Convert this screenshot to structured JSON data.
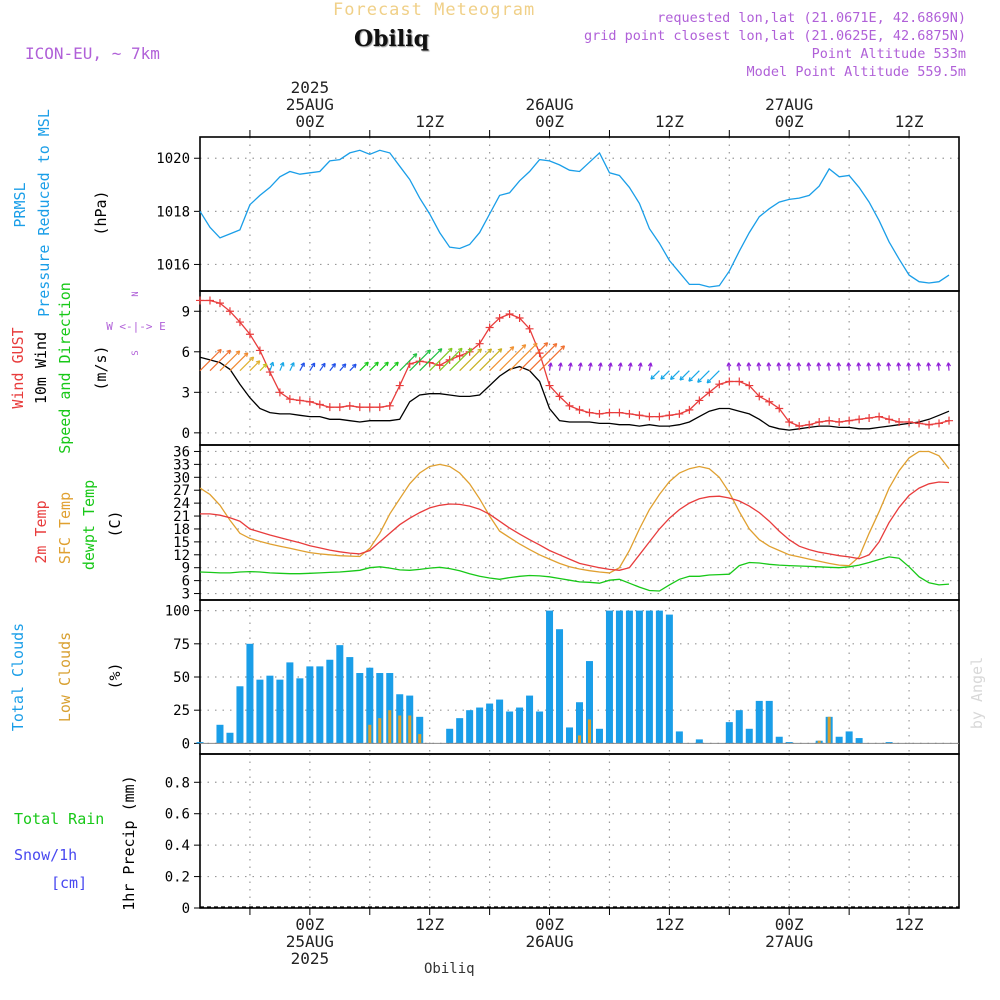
{
  "header": {
    "title_faded": "Forecast Meteogram",
    "location": "Obiliq",
    "model": "ICON-EU, ~ 7km",
    "requested": "requested lon,lat (21.0671E, 42.6869N)",
    "gridpoint": "grid point closest lon,lat (21.0625E, 42.6875N)",
    "point_alt": "Point Altitude 533m",
    "model_alt": "Model Point Altitude 559.5m",
    "watermark": "by Angel",
    "bottom_location": "Obiliq"
  },
  "time_axis": {
    "top_labels": [
      {
        "h": 0,
        "lines": [
          "2025",
          "25AUG",
          "00Z"
        ]
      },
      {
        "h": 12,
        "lines": [
          "12Z"
        ]
      },
      {
        "h": 24,
        "lines": [
          "26AUG",
          "00Z"
        ]
      },
      {
        "h": 36,
        "lines": [
          "12Z"
        ]
      },
      {
        "h": 48,
        "lines": [
          "27AUG",
          "00Z"
        ]
      },
      {
        "h": 60,
        "lines": [
          "12Z"
        ]
      }
    ],
    "bottom_labels": [
      {
        "h": 0,
        "lines": [
          "00Z",
          "25AUG",
          "2025"
        ]
      },
      {
        "h": 12,
        "lines": [
          "12Z"
        ]
      },
      {
        "h": 24,
        "lines": [
          "00Z",
          "26AUG"
        ]
      },
      {
        "h": 36,
        "lines": [
          "12Z"
        ]
      },
      {
        "h": 48,
        "lines": [
          "00Z",
          "27AUG"
        ]
      },
      {
        "h": 60,
        "lines": [
          "12Z"
        ]
      }
    ],
    "x_range_hours": [
      -11,
      65
    ]
  },
  "panel_labels": {
    "pressure": {
      "left": "PRMSL",
      "mid": "Pressure Reduced to MSL",
      "unit": "(hPa)"
    },
    "wind": {
      "gust": "Wind GUST",
      "wind10": "10m Wind",
      "dir": "Speed and Direction",
      "unit": "(m/s)",
      "compass_n": "N",
      "compass_s": "S",
      "compass_we": "W <-|-> E"
    },
    "temp": {
      "t2m": "2m Temp",
      "sfc": "SFC Temp",
      "dew": "dewpt Temp",
      "unit": "(C)"
    },
    "cloud": {
      "total": "Total Clouds",
      "low": "Low Clouds",
      "unit": "(%)"
    },
    "precip": {
      "rain": "Total  Rain",
      "snow": "Snow/1h",
      "snow_unit": "[cm]",
      "unit": "1hr Precip (mm)"
    }
  },
  "colors": {
    "pressure": "#1a9ee8",
    "gust": "#e83c3c",
    "wind10": "#000000",
    "t2m": "#e83c3c",
    "sfc": "#e0a030",
    "dew": "#18c818",
    "total_cloud": "#1a9ee8",
    "low_cloud": "#d8a030",
    "header_purple": "#b060d8",
    "faded_title": "#f0d088",
    "rain_label": "#18c818",
    "snow_label": "#4848f0"
  },
  "chart_data": [
    {
      "type": "line",
      "title": "PRMSL Pressure Reduced to MSL",
      "ylabel": "(hPa)",
      "ylim": [
        1015.0,
        1020.8
      ],
      "yticks": [
        1016,
        1018,
        1020
      ],
      "x_hours": [
        -11,
        -10,
        -9,
        -8,
        -7,
        -6,
        -5,
        -4,
        -3,
        -2,
        -1,
        0,
        1,
        2,
        3,
        4,
        5,
        6,
        7,
        8,
        9,
        10,
        11,
        12,
        13,
        14,
        15,
        16,
        17,
        18,
        19,
        20,
        21,
        22,
        23,
        24,
        25,
        26,
        27,
        28,
        29,
        30,
        31,
        32,
        33,
        34,
        35,
        36,
        37,
        38,
        39,
        40,
        41,
        42,
        43,
        44,
        45,
        46,
        47,
        48,
        49,
        50,
        51,
        52,
        53,
        54,
        55,
        56,
        57,
        58,
        59,
        60,
        61,
        62,
        63,
        64
      ],
      "series": [
        {
          "name": "PRMSL",
          "values": [
            1018.0,
            1017.4,
            1017.0,
            1017.15,
            1017.3,
            1018.25,
            1018.6,
            1018.9,
            1019.3,
            1019.5,
            1019.4,
            1019.45,
            1019.5,
            1019.9,
            1019.95,
            1020.2,
            1020.3,
            1020.15,
            1020.3,
            1020.2,
            1019.7,
            1019.2,
            1018.5,
            1017.9,
            1017.2,
            1016.65,
            1016.6,
            1016.75,
            1017.2,
            1017.9,
            1018.6,
            1018.7,
            1019.15,
            1019.5,
            1019.95,
            1019.9,
            1019.75,
            1019.55,
            1019.5,
            1019.85,
            1020.2,
            1019.45,
            1019.35,
            1018.9,
            1018.3,
            1017.35,
            1016.8,
            1016.15,
            1015.7,
            1015.25,
            1015.25,
            1015.15,
            1015.2,
            1015.75,
            1016.5,
            1017.2,
            1017.8,
            1018.1,
            1018.35,
            1018.45,
            1018.5,
            1018.6,
            1018.95,
            1019.6,
            1019.3,
            1019.35,
            1018.9,
            1018.35,
            1017.65,
            1016.85,
            1016.2,
            1015.6,
            1015.35,
            1015.3,
            1015.35,
            1015.6
          ]
        }
      ]
    },
    {
      "type": "line",
      "title": "Wind GUST / 10m Wind Speed and Direction",
      "ylabel": "(m/s)",
      "ylim": [
        -0.9,
        10.5
      ],
      "yticks": [
        0,
        3,
        6,
        9
      ],
      "x_hours": [
        -11,
        -10,
        -9,
        -8,
        -7,
        -6,
        -5,
        -4,
        -3,
        -2,
        -1,
        0,
        1,
        2,
        3,
        4,
        5,
        6,
        7,
        8,
        9,
        10,
        11,
        12,
        13,
        14,
        15,
        16,
        17,
        18,
        19,
        20,
        21,
        22,
        23,
        24,
        25,
        26,
        27,
        28,
        29,
        30,
        31,
        32,
        33,
        34,
        35,
        36,
        37,
        38,
        39,
        40,
        41,
        42,
        43,
        44,
        45,
        46,
        47,
        48,
        49,
        50,
        51,
        52,
        53,
        54,
        55,
        56,
        57,
        58,
        59,
        60,
        61,
        62,
        63,
        64
      ],
      "series": [
        {
          "name": "Wind GUST",
          "values": [
            9.8,
            9.8,
            9.6,
            9.0,
            8.2,
            7.3,
            6.1,
            4.5,
            3.0,
            2.5,
            2.4,
            2.3,
            2.1,
            1.9,
            1.9,
            2.0,
            1.9,
            1.9,
            1.9,
            2.0,
            3.5,
            5.1,
            5.3,
            5.2,
            5.0,
            5.4,
            5.7,
            6.0,
            6.6,
            7.8,
            8.5,
            8.8,
            8.5,
            7.7,
            5.9,
            3.5,
            2.7,
            2.0,
            1.7,
            1.5,
            1.4,
            1.5,
            1.5,
            1.4,
            1.3,
            1.2,
            1.2,
            1.3,
            1.4,
            1.7,
            2.4,
            3.0,
            3.6,
            3.8,
            3.8,
            3.5,
            2.7,
            2.3,
            1.8,
            0.8,
            0.5,
            0.6,
            0.8,
            0.9,
            0.8,
            0.9,
            1.0,
            1.1,
            1.2,
            1.0,
            0.8,
            0.8,
            0.7,
            0.6,
            0.7,
            0.9
          ]
        },
        {
          "name": "10m Wind",
          "values": [
            5.6,
            5.4,
            5.2,
            4.7,
            3.6,
            2.6,
            1.8,
            1.5,
            1.4,
            1.4,
            1.3,
            1.2,
            1.2,
            1.0,
            1.0,
            0.9,
            0.8,
            0.9,
            0.9,
            0.9,
            1.0,
            2.3,
            2.8,
            2.9,
            2.9,
            2.8,
            2.7,
            2.7,
            2.8,
            3.5,
            4.2,
            4.7,
            4.9,
            4.6,
            3.8,
            1.8,
            0.9,
            0.8,
            0.8,
            0.8,
            0.7,
            0.7,
            0.6,
            0.6,
            0.5,
            0.6,
            0.5,
            0.5,
            0.6,
            0.8,
            1.2,
            1.6,
            1.8,
            1.8,
            1.6,
            1.4,
            1.0,
            0.5,
            0.3,
            0.2,
            0.3,
            0.4,
            0.5,
            0.5,
            0.4,
            0.4,
            0.3,
            0.3,
            0.4,
            0.5,
            0.6,
            0.7,
            0.8,
            1.0,
            1.3,
            1.6
          ]
        }
      ]
    },
    {
      "type": "line",
      "title": "2m Temp / SFC Temp / dewpt Temp",
      "ylabel": "(C)",
      "ylim": [
        1.5,
        37.5
      ],
      "yticks": [
        3,
        6,
        9,
        12,
        15,
        18,
        21,
        24,
        27,
        30,
        33,
        36
      ],
      "x_hours": [
        -11,
        -10,
        -9,
        -8,
        -7,
        -6,
        -5,
        -4,
        -3,
        -2,
        -1,
        0,
        1,
        2,
        3,
        4,
        5,
        6,
        7,
        8,
        9,
        10,
        11,
        12,
        13,
        14,
        15,
        16,
        17,
        18,
        19,
        20,
        21,
        22,
        23,
        24,
        25,
        26,
        27,
        28,
        29,
        30,
        31,
        32,
        33,
        34,
        35,
        36,
        37,
        38,
        39,
        40,
        41,
        42,
        43,
        44,
        45,
        46,
        47,
        48,
        49,
        50,
        51,
        52,
        53,
        54,
        55,
        56,
        57,
        58,
        59,
        60,
        61,
        62,
        63,
        64
      ],
      "series": [
        {
          "name": "2m Temp",
          "values": [
            21.5,
            21.5,
            21.2,
            20.6,
            19.8,
            18.0,
            17.3,
            16.6,
            16.0,
            15.4,
            14.8,
            14.1,
            13.6,
            13.1,
            12.7,
            12.4,
            12.2,
            13.0,
            15.0,
            17.0,
            19.0,
            20.5,
            21.8,
            22.9,
            23.5,
            23.8,
            23.7,
            23.3,
            22.6,
            21.4,
            19.8,
            18.2,
            16.8,
            15.5,
            14.3,
            13.0,
            12.0,
            11.0,
            10.0,
            9.5,
            9.0,
            8.6,
            8.4,
            9.0,
            12.0,
            15.0,
            18.0,
            20.5,
            22.5,
            24.0,
            25.0,
            25.5,
            25.6,
            25.2,
            24.5,
            23.3,
            21.8,
            19.8,
            17.5,
            15.5,
            14.0,
            13.2,
            12.6,
            12.2,
            11.8,
            11.5,
            11.1,
            12.0,
            15.0,
            19.5,
            23.0,
            25.8,
            27.5,
            28.5,
            28.9,
            28.8
          ]
        },
        {
          "name": "SFC Temp",
          "values": [
            27.5,
            26.0,
            23.5,
            20.0,
            17.0,
            15.8,
            15.1,
            14.5,
            14.0,
            13.5,
            13.0,
            12.5,
            12.2,
            12.0,
            11.8,
            11.7,
            11.6,
            13.5,
            17.0,
            21.5,
            25.0,
            28.5,
            31.0,
            32.5,
            33.0,
            32.5,
            31.0,
            28.5,
            25.0,
            21.0,
            17.5,
            16.0,
            14.5,
            13.2,
            12.0,
            11.0,
            10.0,
            9.2,
            8.7,
            8.3,
            8.0,
            7.8,
            9.0,
            13.0,
            18.0,
            22.5,
            26.0,
            29.0,
            31.0,
            32.0,
            32.5,
            32.0,
            30.0,
            26.5,
            22.0,
            18.0,
            15.5,
            14.0,
            13.0,
            12.0,
            11.5,
            11.0,
            10.5,
            10.0,
            9.6,
            9.5,
            11.5,
            17.0,
            22.0,
            27.5,
            31.5,
            34.5,
            36.0,
            36.0,
            35.0,
            32.0
          ]
        },
        {
          "name": "dewpt Temp",
          "values": [
            8.0,
            7.9,
            7.8,
            7.8,
            8.0,
            8.1,
            8.0,
            7.8,
            7.7,
            7.6,
            7.6,
            7.7,
            7.8,
            7.9,
            8.0,
            8.2,
            8.4,
            9.0,
            9.2,
            8.9,
            8.5,
            8.4,
            8.6,
            8.9,
            9.1,
            8.8,
            8.3,
            7.6,
            7.0,
            6.6,
            6.3,
            6.7,
            7.0,
            7.2,
            7.1,
            6.9,
            6.5,
            6.1,
            5.7,
            5.6,
            5.4,
            6.1,
            6.3,
            5.4,
            4.5,
            3.7,
            3.6,
            5.0,
            6.3,
            7.0,
            7.0,
            7.3,
            7.4,
            7.5,
            9.5,
            10.2,
            10.1,
            9.8,
            9.6,
            9.5,
            9.4,
            9.3,
            9.2,
            9.1,
            9.0,
            9.2,
            9.6,
            10.2,
            10.9,
            11.5,
            11.2,
            9.2,
            6.9,
            5.5,
            5.0,
            5.2
          ]
        }
      ]
    },
    {
      "type": "bar",
      "title": "Total Clouds / Low Clouds",
      "ylabel": "(%)",
      "ylim": [
        -8,
        108
      ],
      "yticks": [
        0,
        25,
        50,
        75,
        100
      ],
      "x_hours": [
        -11,
        -10,
        -9,
        -8,
        -7,
        -6,
        -5,
        -4,
        -3,
        -2,
        -1,
        0,
        1,
        2,
        3,
        4,
        5,
        6,
        7,
        8,
        9,
        10,
        11,
        12,
        13,
        14,
        15,
        16,
        17,
        18,
        19,
        20,
        21,
        22,
        23,
        24,
        25,
        26,
        27,
        28,
        29,
        30,
        31,
        32,
        33,
        34,
        35,
        36,
        37,
        38,
        39,
        40,
        41,
        42,
        43,
        44,
        45,
        46,
        47,
        48,
        49,
        50,
        51,
        52,
        53,
        54,
        55,
        56,
        57,
        58,
        59,
        60,
        61,
        62,
        63,
        64
      ],
      "series": [
        {
          "name": "Total Clouds",
          "values": [
            1,
            0,
            14,
            8,
            43,
            75,
            48,
            51,
            48,
            61,
            49,
            58,
            58,
            63,
            74,
            65,
            53,
            57,
            53,
            53,
            37,
            36,
            20,
            0,
            0,
            11,
            19,
            25,
            27,
            30,
            33,
            24,
            27,
            36,
            24,
            100,
            86,
            12,
            31,
            62,
            11,
            100,
            100,
            100,
            100,
            100,
            100,
            97,
            9,
            0,
            3,
            0,
            0,
            16,
            25,
            11,
            32,
            32,
            5,
            1,
            0,
            0,
            2,
            20,
            5,
            9,
            4,
            0,
            0,
            1,
            0,
            0,
            0,
            0,
            0,
            0
          ]
        },
        {
          "name": "Low Clouds",
          "values": [
            0,
            0,
            0,
            0,
            0,
            0,
            0,
            0,
            0,
            0,
            0,
            0,
            0,
            0,
            0,
            0,
            0,
            14,
            19,
            25,
            21,
            21,
            7,
            0,
            0,
            0,
            0,
            0,
            0,
            0,
            0,
            0,
            0,
            0,
            0,
            0,
            0,
            0,
            6,
            18,
            0,
            0,
            0,
            0,
            0,
            0,
            0,
            0,
            0,
            0,
            0,
            0,
            0,
            0,
            0,
            0,
            0,
            0,
            0,
            0,
            0,
            0,
            2,
            20,
            0,
            0,
            0,
            0,
            0,
            0,
            0,
            0,
            0,
            0,
            0,
            0
          ]
        }
      ]
    },
    {
      "type": "bar",
      "title": "1hr Precip",
      "ylabel": "1hr Precip (mm)",
      "ylim": [
        0,
        0.98
      ],
      "yticks": [
        0,
        0.2,
        0.4,
        0.6,
        0.8
      ],
      "series": [
        {
          "name": "Total Rain",
          "values": []
        },
        {
          "name": "Snow/1h",
          "values": []
        }
      ]
    }
  ]
}
